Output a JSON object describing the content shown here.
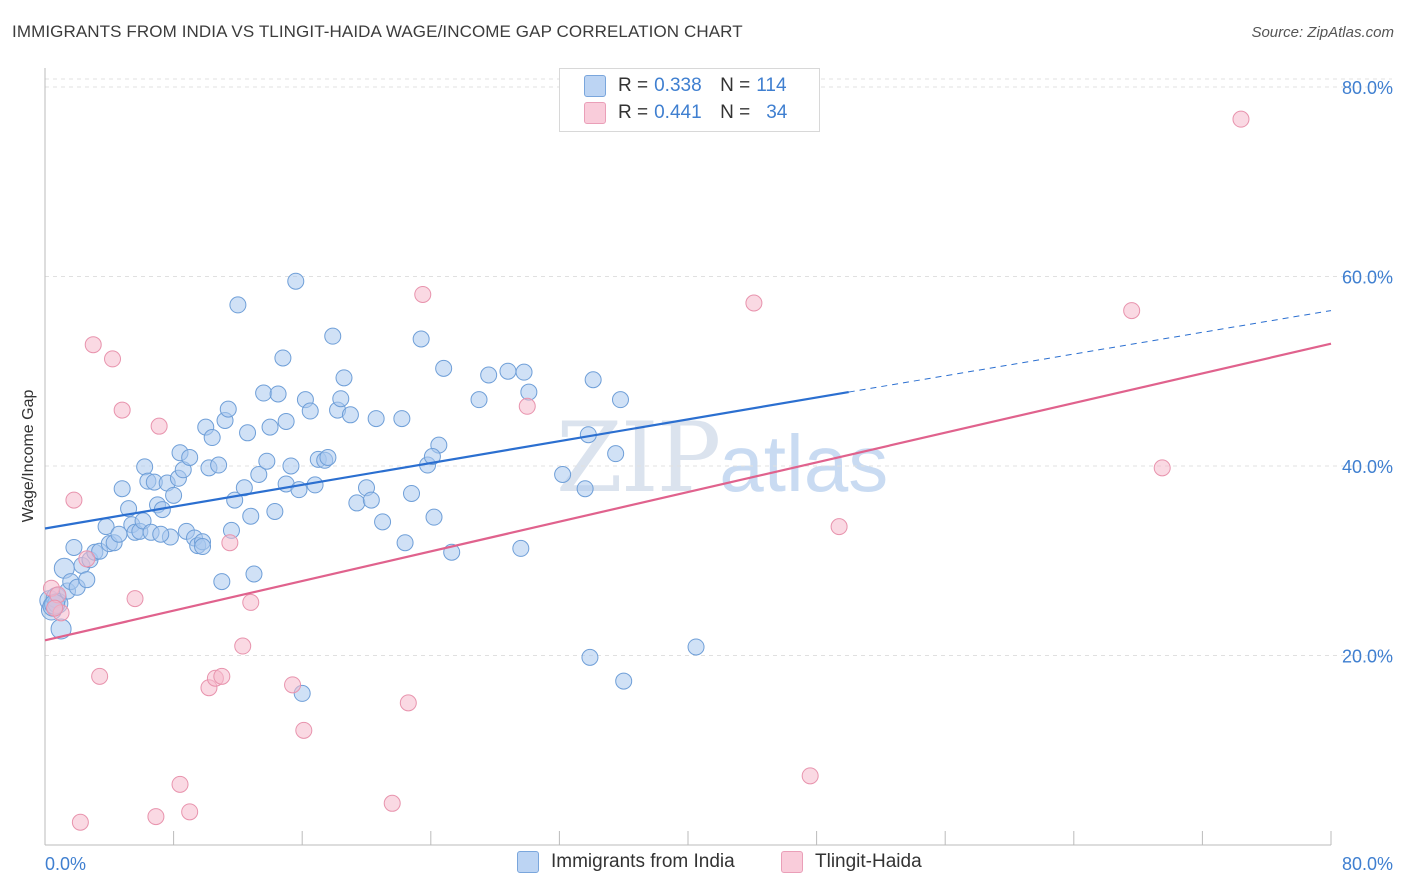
{
  "title": "IMMIGRANTS FROM INDIA VS TLINGIT-HAIDA WAGE/INCOME GAP CORRELATION CHART",
  "source": "Source: ZipAtlas.com",
  "watermark": {
    "zip": "ZIP",
    "atlas": "atlas"
  },
  "colors": {
    "blue_fill": "#a9c8ef",
    "blue_stroke": "#6f9fd8",
    "blue_line": "#2b6fd0",
    "pink_fill": "#f6b9cc",
    "pink_stroke": "#e893ad",
    "pink_line": "#e0628d",
    "tick_label": "#3f7fd0",
    "grid": "#e0e0e0"
  },
  "legend": {
    "rows": [
      {
        "r_label": "R =",
        "r_value": "0.338",
        "n_label": "N =",
        "n_value": "114"
      },
      {
        "r_label": "R =",
        "r_value": "0.441",
        "n_label": "N =",
        "n_value": "34"
      }
    ]
  },
  "bottom_legend": {
    "series1": "Immigrants from India",
    "series2": "Tlingit-Haida"
  },
  "chart_data": {
    "type": "scatter",
    "title": "IMMIGRANTS FROM INDIA VS TLINGIT-HAIDA WAGE/INCOME GAP CORRELATION CHART",
    "xlabel": "",
    "ylabel": "Wage/Income Gap",
    "xlim": [
      0,
      80
    ],
    "ylim": [
      0,
      82
    ],
    "x_tick_labels": [
      "0.0%",
      "80.0%"
    ],
    "y_ticks": [
      20,
      40,
      60,
      80
    ],
    "y_tick_labels": [
      "20.0%",
      "40.0%",
      "60.0%",
      "80.0%"
    ],
    "series": [
      {
        "name": "Immigrants from India",
        "R": 0.338,
        "N": 114,
        "trend": {
          "x0": 0,
          "y0": 33.4,
          "x1": 50,
          "y1": 47.8,
          "dashed_to_x": 80,
          "dashed_to_y": 56.4
        },
        "points": [
          [
            0.3,
            25.8
          ],
          [
            0.4,
            24.8
          ],
          [
            0.5,
            25.2
          ],
          [
            0.7,
            26.1
          ],
          [
            0.8,
            25.5
          ],
          [
            1.0,
            22.8
          ],
          [
            1.2,
            29.2
          ],
          [
            1.4,
            26.8
          ],
          [
            1.6,
            27.8
          ],
          [
            1.8,
            31.4
          ],
          [
            2.0,
            27.2
          ],
          [
            2.3,
            29.5
          ],
          [
            2.6,
            28.0
          ],
          [
            2.8,
            30.1
          ],
          [
            3.1,
            30.9
          ],
          [
            3.4,
            31.0
          ],
          [
            3.8,
            33.6
          ],
          [
            4.0,
            31.8
          ],
          [
            4.3,
            31.9
          ],
          [
            4.6,
            32.8
          ],
          [
            4.8,
            37.6
          ],
          [
            5.2,
            35.5
          ],
          [
            5.4,
            33.8
          ],
          [
            5.6,
            33.0
          ],
          [
            5.9,
            33.1
          ],
          [
            6.1,
            34.2
          ],
          [
            6.2,
            39.9
          ],
          [
            6.4,
            38.4
          ],
          [
            6.6,
            33.0
          ],
          [
            6.8,
            38.3
          ],
          [
            7.0,
            35.9
          ],
          [
            7.3,
            35.4
          ],
          [
            7.6,
            38.2
          ],
          [
            7.8,
            32.5
          ],
          [
            8.0,
            36.9
          ],
          [
            8.3,
            38.7
          ],
          [
            8.4,
            41.4
          ],
          [
            8.6,
            39.6
          ],
          [
            8.8,
            33.1
          ],
          [
            9.0,
            40.9
          ],
          [
            9.3,
            32.4
          ],
          [
            9.5,
            31.6
          ],
          [
            9.8,
            32.0
          ],
          [
            10.0,
            44.1
          ],
          [
            10.2,
            39.8
          ],
          [
            10.4,
            43.0
          ],
          [
            10.8,
            40.1
          ],
          [
            11.0,
            27.8
          ],
          [
            11.2,
            44.8
          ],
          [
            11.4,
            46.0
          ],
          [
            11.6,
            33.2
          ],
          [
            11.8,
            36.4
          ],
          [
            12.0,
            57.0
          ],
          [
            12.4,
            37.7
          ],
          [
            12.6,
            43.5
          ],
          [
            12.8,
            34.7
          ],
          [
            13.0,
            28.6
          ],
          [
            13.3,
            39.1
          ],
          [
            13.6,
            47.7
          ],
          [
            13.8,
            40.5
          ],
          [
            14.0,
            44.1
          ],
          [
            14.3,
            35.2
          ],
          [
            14.5,
            47.6
          ],
          [
            14.8,
            51.4
          ],
          [
            15.0,
            38.1
          ],
          [
            15.3,
            40.0
          ],
          [
            15.6,
            59.5
          ],
          [
            15.8,
            37.5
          ],
          [
            16.0,
            16.0
          ],
          [
            16.2,
            47.0
          ],
          [
            16.5,
            45.8
          ],
          [
            16.8,
            38.0
          ],
          [
            17.0,
            40.7
          ],
          [
            17.4,
            40.6
          ],
          [
            17.6,
            40.9
          ],
          [
            17.9,
            53.7
          ],
          [
            18.2,
            45.9
          ],
          [
            18.4,
            47.1
          ],
          [
            18.6,
            49.3
          ],
          [
            19.0,
            45.4
          ],
          [
            19.4,
            36.1
          ],
          [
            20.0,
            37.7
          ],
          [
            20.3,
            36.4
          ],
          [
            20.6,
            45.0
          ],
          [
            21.0,
            34.1
          ],
          [
            22.2,
            45.0
          ],
          [
            22.4,
            31.9
          ],
          [
            22.8,
            37.1
          ],
          [
            23.4,
            53.4
          ],
          [
            23.8,
            40.1
          ],
          [
            24.2,
            34.6
          ],
          [
            24.5,
            42.2
          ],
          [
            24.8,
            50.3
          ],
          [
            25.3,
            30.9
          ],
          [
            27.0,
            47.0
          ],
          [
            27.6,
            49.6
          ],
          [
            28.8,
            50.0
          ],
          [
            29.6,
            31.3
          ],
          [
            29.8,
            49.9
          ],
          [
            30.1,
            47.8
          ],
          [
            32.2,
            39.1
          ],
          [
            33.9,
            19.8
          ],
          [
            33.6,
            37.6
          ],
          [
            33.8,
            43.3
          ],
          [
            34.1,
            49.1
          ],
          [
            35.5,
            41.3
          ],
          [
            35.8,
            47.0
          ],
          [
            36.0,
            17.3
          ],
          [
            40.5,
            20.9
          ],
          [
            0.6,
            25.4
          ],
          [
            9.8,
            31.5
          ],
          [
            7.2,
            32.8
          ],
          [
            15.0,
            44.7
          ],
          [
            24.1,
            41.0
          ]
        ]
      },
      {
        "name": "Tlingit-Haida",
        "R": 0.441,
        "N": 34,
        "trend": {
          "x0": 0,
          "y0": 21.6,
          "x1": 80,
          "y1": 52.9
        },
        "points": [
          [
            0.4,
            27.1
          ],
          [
            0.8,
            26.4
          ],
          [
            1.0,
            24.5
          ],
          [
            1.8,
            36.4
          ],
          [
            2.2,
            2.4
          ],
          [
            2.6,
            30.2
          ],
          [
            3.0,
            52.8
          ],
          [
            3.4,
            17.8
          ],
          [
            4.2,
            51.3
          ],
          [
            4.8,
            45.9
          ],
          [
            5.6,
            26.0
          ],
          [
            6.9,
            3.0
          ],
          [
            7.1,
            44.2
          ],
          [
            8.4,
            6.4
          ],
          [
            9.0,
            3.5
          ],
          [
            10.2,
            16.6
          ],
          [
            10.6,
            17.6
          ],
          [
            11.0,
            17.8
          ],
          [
            11.5,
            31.9
          ],
          [
            12.3,
            21.0
          ],
          [
            12.8,
            25.6
          ],
          [
            15.4,
            16.9
          ],
          [
            16.1,
            12.1
          ],
          [
            21.6,
            4.4
          ],
          [
            22.6,
            15.0
          ],
          [
            23.5,
            58.1
          ],
          [
            30.0,
            46.3
          ],
          [
            44.1,
            57.2
          ],
          [
            47.6,
            7.3
          ],
          [
            49.4,
            33.6
          ],
          [
            67.6,
            56.4
          ],
          [
            69.5,
            39.8
          ],
          [
            74.4,
            76.6
          ],
          [
            0.6,
            25.0
          ]
        ]
      }
    ]
  }
}
